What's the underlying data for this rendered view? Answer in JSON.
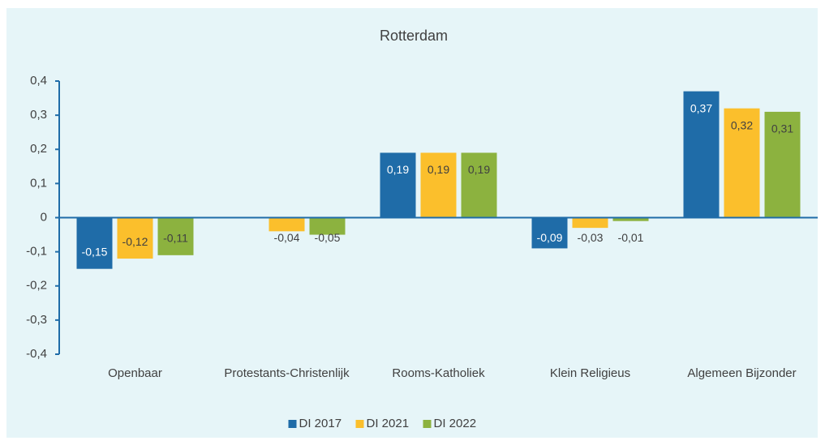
{
  "chart_data": {
    "type": "bar",
    "title": "Rotterdam",
    "categories": [
      "Openbaar",
      "Protestants-Christenlijk",
      "Rooms-Katholiek",
      "Klein Religieus",
      "Algemeen Bijzonder"
    ],
    "series": [
      {
        "name": "DI 2017",
        "color": "#1f6ca8",
        "values": [
          -0.15,
          null,
          0.19,
          -0.09,
          0.37
        ],
        "value_labels": [
          "-0,15",
          null,
          "0,19",
          "-0,09",
          "0,37"
        ]
      },
      {
        "name": "DI 2021",
        "color": "#fbbf2c",
        "values": [
          -0.12,
          -0.04,
          0.19,
          -0.03,
          0.32
        ],
        "value_labels": [
          "-0,12",
          "-0,04",
          "0,19",
          "-0,03",
          "0,32"
        ]
      },
      {
        "name": "DI 2022",
        "color": "#8cb23f",
        "values": [
          -0.11,
          -0.05,
          0.19,
          -0.01,
          0.31
        ],
        "value_labels": [
          "-0,11",
          "-0,05",
          "0,19",
          "-0,01",
          "0,31"
        ]
      }
    ],
    "ylim": [
      -0.4,
      0.4
    ],
    "yticks": [
      {
        "value": 0.4,
        "label": "0,4"
      },
      {
        "value": 0.3,
        "label": "0,3"
      },
      {
        "value": 0.2,
        "label": "0,2"
      },
      {
        "value": 0.1,
        "label": "0,1"
      },
      0,
      {
        "value": -0.1,
        "label": "-0,1"
      },
      {
        "value": -0.2,
        "label": "-0,2"
      },
      {
        "value": -0.3,
        "label": "-0,3"
      },
      {
        "value": -0.4,
        "label": "-0,4"
      }
    ],
    "grid": false,
    "legend": "bottom"
  }
}
